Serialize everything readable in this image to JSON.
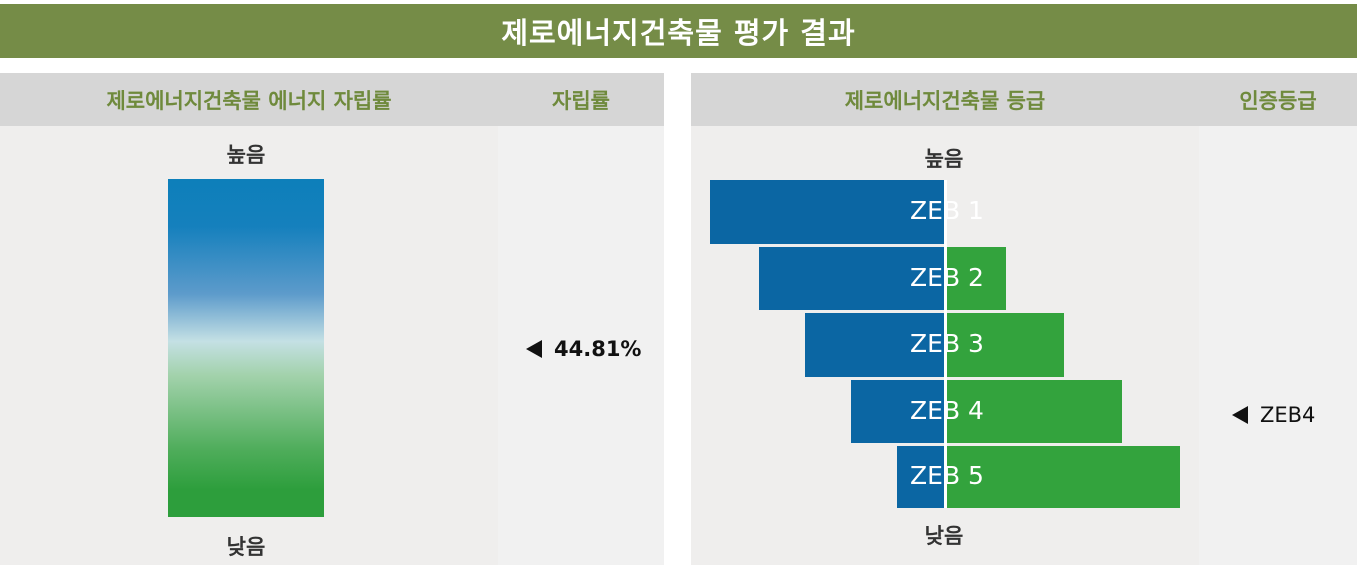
{
  "title": "제로에너지건축물 평가 결과",
  "left_panel": {
    "header_main": "제로에너지건축물 에너지 자립률",
    "header_side": "자립률",
    "label_high": "높음",
    "label_low": "낮음",
    "self_sufficiency_rate": "44.81%"
  },
  "right_panel": {
    "header_main": "제로에너지건축물 등급",
    "header_side": "인증등급",
    "label_high": "높음",
    "label_low": "낮음",
    "certified_grade": "ZEB4",
    "grades": [
      "ZEB 1",
      "ZEB 2",
      "ZEB 3",
      "ZEB 4",
      "ZEB 5"
    ]
  },
  "colors": {
    "title_bar": "#758c47",
    "header_text": "#6f8a3c",
    "blue": "#0b66a3",
    "green": "#33a33d"
  }
}
